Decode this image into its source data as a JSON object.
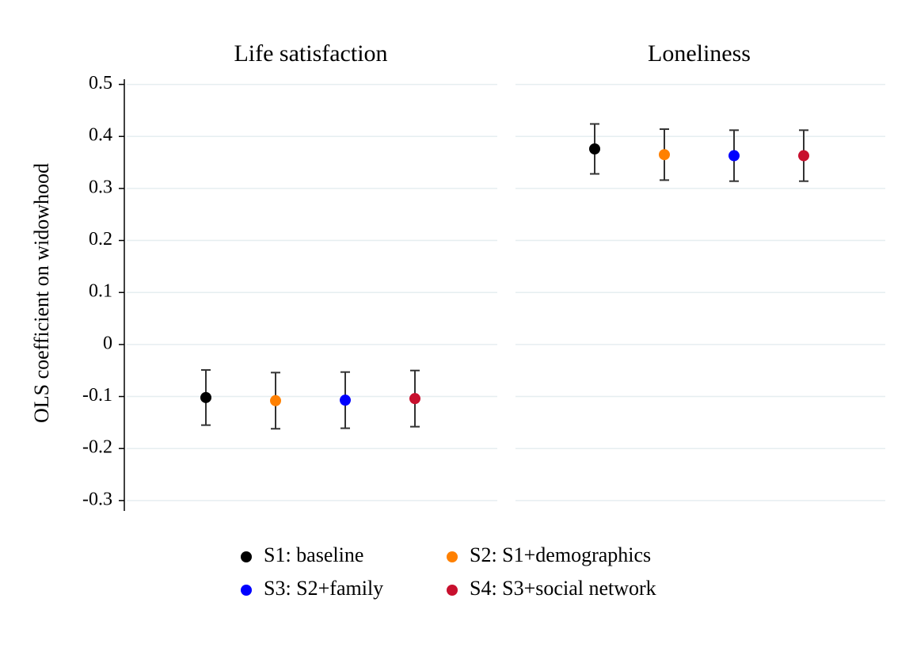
{
  "chart_data": {
    "type": "errorbar",
    "ylabel": "OLS coefficient on widowhood",
    "categories": [
      "Life satisfaction",
      "Loneliness"
    ],
    "series": [
      {
        "name": "S1: baseline",
        "color": "#000000",
        "values": [
          -0.102,
          0.376
        ],
        "errors": [
          0.053,
          0.048
        ]
      },
      {
        "name": "S2: S1+demographics",
        "color": "#ff8000",
        "values": [
          -0.108,
          0.365
        ],
        "errors": [
          0.054,
          0.049
        ]
      },
      {
        "name": "S3: S2+family",
        "color": "#0000ff",
        "values": [
          -0.107,
          0.363
        ],
        "errors": [
          0.054,
          0.049
        ]
      },
      {
        "name": "S4: S3+social network",
        "color": "#c8102e",
        "values": [
          -0.104,
          0.363
        ],
        "errors": [
          0.054,
          0.049
        ]
      }
    ],
    "ylim": [
      -0.32,
      0.51
    ],
    "yticks": [
      -0.3,
      -0.2,
      -0.1,
      0,
      0.1,
      0.2,
      0.3,
      0.4,
      0.5
    ],
    "grid": true
  }
}
